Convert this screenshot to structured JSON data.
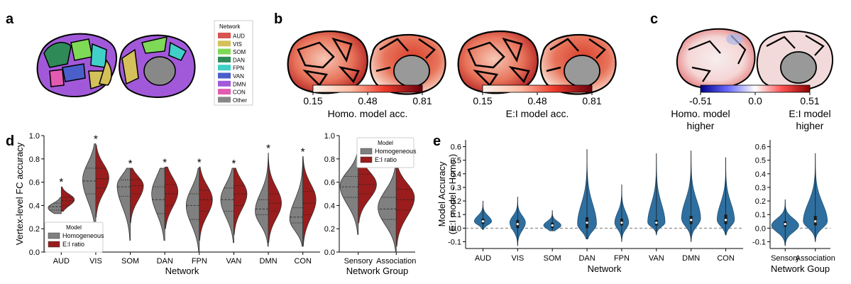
{
  "panel_labels": [
    "a",
    "b",
    "c",
    "d",
    "e"
  ],
  "panel_a": {
    "legend_title": "Network",
    "legend_items": [
      {
        "label": "AUD",
        "color": "#d9534f"
      },
      {
        "label": "VIS",
        "color": "#d4c15a"
      },
      {
        "label": "SOM",
        "color": "#7ed957"
      },
      {
        "label": "DAN",
        "color": "#2e8b57"
      },
      {
        "label": "FPN",
        "color": "#40d0c8"
      },
      {
        "label": "VAN",
        "color": "#4a5fc9"
      },
      {
        "label": "DMN",
        "color": "#a259d9"
      },
      {
        "label": "CON",
        "color": "#e25bb0"
      },
      {
        "label": "Other",
        "color": "#888888"
      }
    ]
  },
  "panel_b": {
    "colorbars": [
      {
        "ticks": [
          "0.15",
          "0.48",
          "0.81"
        ],
        "title": "Homo. model acc."
      },
      {
        "ticks": [
          "0.15",
          "0.48",
          "0.81"
        ],
        "title": "E:I model acc."
      }
    ]
  },
  "panel_c": {
    "ticks": [
      "-0.51",
      "0.0",
      "0.51"
    ],
    "left_title": [
      "Homo. model",
      "higher"
    ],
    "right_title": [
      "E:I model",
      "higher"
    ]
  },
  "chart_data": [
    {
      "type": "violin",
      "panel": "d-left",
      "ylabel": "Vertex-level FC accuracy",
      "xlabel": "Network",
      "ylim": [
        0.0,
        1.0
      ],
      "yticks": [
        "0.0",
        "0.2",
        "0.4",
        "0.6",
        "0.8",
        "1.0"
      ],
      "categories": [
        "AUD",
        "VIS",
        "SOM",
        "DAN",
        "FPN",
        "VAN",
        "DMN",
        "CON"
      ],
      "legend": {
        "title": "Model",
        "items": [
          {
            "label": "Homogeneous",
            "color": "#808080"
          },
          {
            "label": "E:I ratio",
            "color": "#9b1c1c"
          }
        ],
        "placement": "lower-left"
      },
      "significance": [
        "*",
        "*",
        "*",
        "*",
        "*",
        "*",
        "*",
        "*"
      ],
      "series": [
        {
          "name": "Homogeneous",
          "violins": [
            {
              "min": 0.33,
              "q1": 0.36,
              "median": 0.39,
              "q3": 0.42,
              "max": 0.47,
              "mode": 0.38
            },
            {
              "min": 0.15,
              "q1": 0.5,
              "median": 0.61,
              "q3": 0.72,
              "max": 0.93,
              "mode": 0.62
            },
            {
              "min": 0.1,
              "q1": 0.48,
              "median": 0.56,
              "q3": 0.62,
              "max": 0.72,
              "mode": 0.57
            },
            {
              "min": 0.1,
              "q1": 0.33,
              "median": 0.45,
              "q3": 0.56,
              "max": 0.72,
              "mode": 0.5
            },
            {
              "min": 0.0,
              "q1": 0.28,
              "median": 0.4,
              "q3": 0.5,
              "max": 0.72,
              "mode": 0.4
            },
            {
              "min": 0.08,
              "q1": 0.35,
              "median": 0.45,
              "q3": 0.55,
              "max": 0.72,
              "mode": 0.45
            },
            {
              "min": 0.05,
              "q1": 0.32,
              "median": 0.37,
              "q3": 0.45,
              "max": 0.85,
              "mode": 0.35
            },
            {
              "min": 0.05,
              "q1": 0.25,
              "median": 0.3,
              "q3": 0.38,
              "max": 0.82,
              "mode": 0.28
            }
          ]
        },
        {
          "name": "E:I ratio",
          "violins": [
            {
              "min": 0.35,
              "q1": 0.4,
              "median": 0.44,
              "q3": 0.47,
              "max": 0.56,
              "mode": 0.45
            },
            {
              "min": 0.3,
              "q1": 0.55,
              "median": 0.63,
              "q3": 0.72,
              "max": 0.92,
              "mode": 0.64
            },
            {
              "min": 0.25,
              "q1": 0.5,
              "median": 0.57,
              "q3": 0.62,
              "max": 0.72,
              "mode": 0.57
            },
            {
              "min": 0.2,
              "q1": 0.4,
              "median": 0.5,
              "q3": 0.58,
              "max": 0.73,
              "mode": 0.52
            },
            {
              "min": 0.1,
              "q1": 0.35,
              "median": 0.45,
              "q3": 0.53,
              "max": 0.73,
              "mode": 0.45
            },
            {
              "min": 0.15,
              "q1": 0.4,
              "median": 0.5,
              "q3": 0.57,
              "max": 0.72,
              "mode": 0.5
            },
            {
              "min": 0.08,
              "q1": 0.35,
              "median": 0.42,
              "q3": 0.5,
              "max": 0.85,
              "mode": 0.42
            },
            {
              "min": 0.05,
              "q1": 0.32,
              "median": 0.42,
              "q3": 0.52,
              "max": 0.82,
              "mode": 0.45
            }
          ]
        }
      ]
    },
    {
      "type": "violin",
      "panel": "d-right",
      "xlabel": "Network Group",
      "ylim": [
        0.0,
        1.0
      ],
      "yticks": [
        "0.0",
        "0.2",
        "0.4",
        "0.6",
        "0.8",
        "1.0"
      ],
      "categories": [
        "Sensory",
        "Association"
      ],
      "legend": {
        "title": "Model",
        "items": [
          {
            "label": "Homogeneous",
            "color": "#808080"
          },
          {
            "label": "E:I ratio",
            "color": "#9b1c1c"
          }
        ],
        "placement": "top-right"
      },
      "series": [
        {
          "name": "Homogeneous",
          "violins": [
            {
              "min": 0.15,
              "q1": 0.47,
              "median": 0.56,
              "q3": 0.65,
              "max": 0.93,
              "mode": 0.57
            },
            {
              "min": 0.0,
              "q1": 0.28,
              "median": 0.37,
              "q3": 0.47,
              "max": 0.85,
              "mode": 0.38
            }
          ]
        },
        {
          "name": "E:I ratio",
          "violins": [
            {
              "min": 0.25,
              "q1": 0.5,
              "median": 0.58,
              "q3": 0.67,
              "max": 0.92,
              "mode": 0.58
            },
            {
              "min": 0.05,
              "q1": 0.36,
              "median": 0.45,
              "q3": 0.54,
              "max": 0.85,
              "mode": 0.47
            }
          ]
        }
      ]
    },
    {
      "type": "violin",
      "panel": "e-left",
      "ylabel": "Model Accuracy\n(E:I model - Homo.)",
      "xlabel": "Network",
      "ylim": [
        -0.15,
        0.65
      ],
      "yticks": [
        "-0.1",
        "0.0",
        "0.1",
        "0.2",
        "0.3",
        "0.4",
        "0.5",
        "0.6"
      ],
      "categories": [
        "AUD",
        "VIS",
        "SOM",
        "DAN",
        "FPN",
        "VAN",
        "DMN",
        "CON"
      ],
      "color": "#2f6f9f",
      "violins": [
        {
          "min": -0.01,
          "q1": 0.03,
          "median": 0.05,
          "q3": 0.07,
          "max": 0.2,
          "mode": 0.05,
          "w": 0.5
        },
        {
          "min": -0.13,
          "q1": 0.0,
          "median": 0.03,
          "q3": 0.06,
          "max": 0.23,
          "mode": 0.04,
          "w": 0.45
        },
        {
          "min": -0.02,
          "q1": 0.0,
          "median": 0.02,
          "q3": 0.04,
          "max": 0.13,
          "mode": 0.02,
          "w": 0.5
        },
        {
          "min": -0.08,
          "q1": 0.0,
          "median": 0.04,
          "q3": 0.08,
          "max": 0.58,
          "mode": 0.03,
          "w": 0.55
        },
        {
          "min": -0.1,
          "q1": 0.02,
          "median": 0.04,
          "q3": 0.07,
          "max": 0.32,
          "mode": 0.04,
          "w": 0.4
        },
        {
          "min": -0.05,
          "q1": 0.02,
          "median": 0.04,
          "q3": 0.06,
          "max": 0.55,
          "mode": 0.04,
          "w": 0.5
        },
        {
          "min": -0.1,
          "q1": 0.03,
          "median": 0.06,
          "q3": 0.09,
          "max": 0.57,
          "mode": 0.07,
          "w": 0.55
        },
        {
          "min": -0.05,
          "q1": 0.03,
          "median": 0.06,
          "q3": 0.1,
          "max": 0.52,
          "mode": 0.06,
          "w": 0.5
        }
      ]
    },
    {
      "type": "violin",
      "panel": "e-right",
      "xlabel": "Network Goup",
      "ylim": [
        -0.15,
        0.65
      ],
      "yticks": [
        "-0.1",
        "0.0",
        "0.1",
        "0.2",
        "0.3",
        "0.4",
        "0.5",
        "0.6"
      ],
      "categories": [
        "Sensory",
        "Association"
      ],
      "color": "#2f6f9f",
      "violins": [
        {
          "min": -0.13,
          "q1": 0.01,
          "median": 0.03,
          "q3": 0.05,
          "max": 0.21,
          "mode": 0.02,
          "w": 0.9
        },
        {
          "min": -0.1,
          "q1": 0.02,
          "median": 0.05,
          "q3": 0.09,
          "max": 0.55,
          "mode": 0.05,
          "w": 0.8
        }
      ]
    }
  ]
}
